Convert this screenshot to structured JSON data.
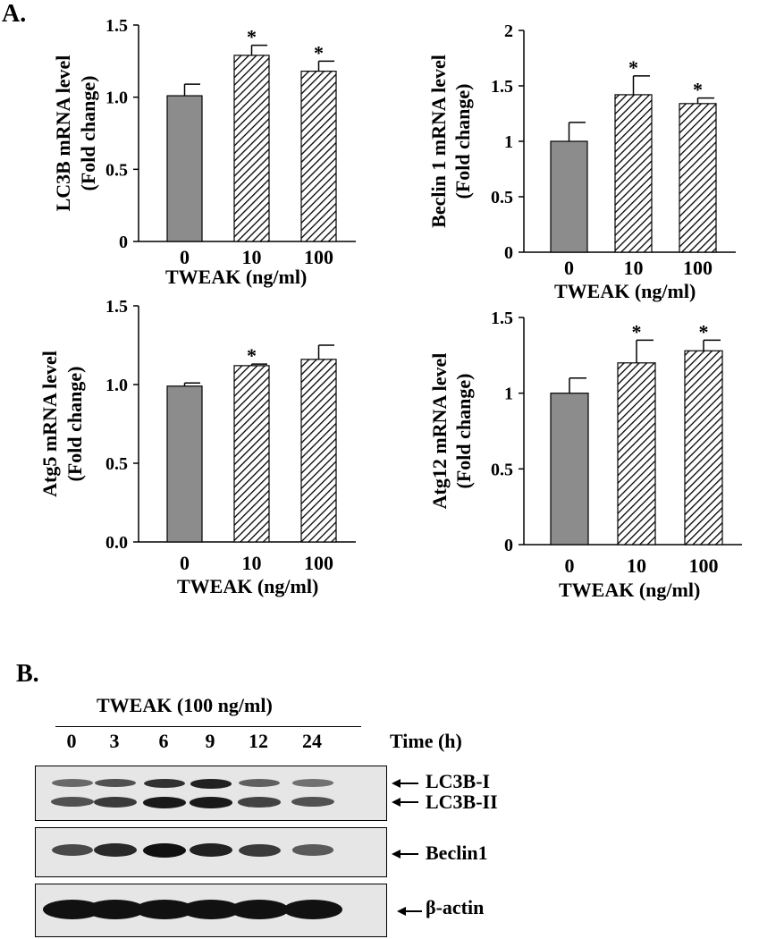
{
  "panel_a_label": "A.",
  "panel_b_label": "B.",
  "chart_data": [
    {
      "type": "bar",
      "ylabel": "LC3B mRNA level",
      "ylabel2": "(Fold change)",
      "xlabel": "TWEAK (ng/ml)",
      "categories": [
        "0",
        "10",
        "100"
      ],
      "values": [
        1.01,
        1.29,
        1.18
      ],
      "errors": [
        0.08,
        0.07,
        0.07
      ],
      "significant": [
        false,
        true,
        true
      ],
      "yticks": [
        "0",
        "0.5",
        "1.0",
        "1.5"
      ],
      "ylim": [
        0,
        1.5
      ],
      "fills": [
        "solid-gray",
        "hatched",
        "hatched"
      ]
    },
    {
      "type": "bar",
      "ylabel": "Beclin 1 mRNA level",
      "ylabel2": "(Fold change)",
      "xlabel": "TWEAK (ng/ml)",
      "categories": [
        "0",
        "10",
        "100"
      ],
      "values": [
        1.0,
        1.42,
        1.34
      ],
      "errors": [
        0.17,
        0.17,
        0.05
      ],
      "significant": [
        false,
        true,
        true
      ],
      "yticks": [
        "0",
        "0.5",
        "1",
        "1.5",
        "2"
      ],
      "ylim": [
        0,
        2
      ],
      "fills": [
        "solid-gray",
        "hatched",
        "hatched"
      ]
    },
    {
      "type": "bar",
      "ylabel": "Atg5 mRNA level",
      "ylabel2": "(Fold change)",
      "xlabel": "TWEAK (ng/ml)",
      "categories": [
        "0",
        "10",
        "100"
      ],
      "values": [
        0.99,
        1.12,
        1.16
      ],
      "errors": [
        0.02,
        0.01,
        0.09
      ],
      "significant": [
        false,
        true,
        false
      ],
      "yticks": [
        "0.0",
        "0.5",
        "1.0",
        "1.5"
      ],
      "ylim": [
        0,
        1.5
      ],
      "fills": [
        "solid-gray",
        "hatched",
        "hatched"
      ]
    },
    {
      "type": "bar",
      "ylabel": "Atg12 mRNA level",
      "ylabel2": "(Fold change)",
      "xlabel": "TWEAK (ng/ml)",
      "categories": [
        "0",
        "10",
        "100"
      ],
      "values": [
        1.0,
        1.2,
        1.28
      ],
      "errors": [
        0.1,
        0.15,
        0.07
      ],
      "significant": [
        false,
        true,
        true
      ],
      "yticks": [
        "0",
        "0.5",
        "1",
        "1.5"
      ],
      "ylim": [
        0,
        1.5
      ],
      "fills": [
        "solid-gray",
        "hatched",
        "hatched"
      ]
    }
  ],
  "colors": {
    "control_bar": "#8c8c8c",
    "hatch": "#000000",
    "blot_background": "#e6e6e6",
    "band": "#111111"
  },
  "significance_marker": "*",
  "blot": {
    "treatment_label": "TWEAK (100 ng/ml)",
    "time_label": "Time (h)",
    "lanes": [
      "0",
      "3",
      "6",
      "9",
      "12",
      "24"
    ],
    "rows": [
      {
        "labels": [
          "LC3B-I",
          "LC3B-II"
        ],
        "intensity_upper": [
          0.45,
          0.6,
          0.8,
          0.9,
          0.5,
          0.4
        ],
        "intensity_lower": [
          0.6,
          0.75,
          0.95,
          0.95,
          0.7,
          0.6
        ]
      },
      {
        "labels": [
          "Beclin1"
        ],
        "intensity": [
          0.65,
          0.85,
          1.0,
          0.9,
          0.75,
          0.55
        ]
      },
      {
        "labels": [
          "β-actin"
        ],
        "intensity": [
          1.0,
          1.0,
          1.0,
          1.0,
          1.0,
          1.0
        ]
      }
    ]
  }
}
